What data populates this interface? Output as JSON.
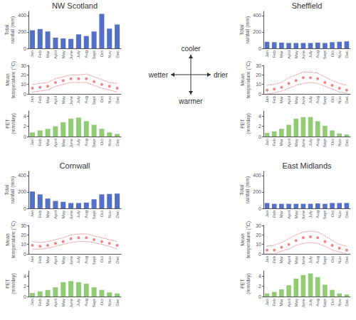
{
  "chart_data": [
    {
      "type": "bar",
      "title": "NW Scotland",
      "ylabel": "Total\nrainfall (mm)",
      "categories": [
        "Jan",
        "Feb",
        "Mar",
        "April",
        "May",
        "June",
        "July",
        "Aug",
        "Sept",
        "Oct",
        "Nov",
        "Dec"
      ],
      "values": [
        220,
        235,
        205,
        130,
        120,
        115,
        170,
        150,
        205,
        420,
        240,
        290
      ],
      "ylim": [
        0,
        450
      ],
      "yticks": [
        0,
        200,
        400
      ],
      "grid": false
    },
    {
      "type": "line",
      "ylabel": "Mean\ntemperature (°C)",
      "categories": [
        "Jan",
        "Feb",
        "Mar",
        "April",
        "May",
        "June",
        "July",
        "Aug",
        "Sept",
        "Oct",
        "Nov",
        "Dec"
      ],
      "values": [
        6,
        7,
        8,
        12,
        14,
        16,
        16,
        16,
        13,
        10,
        8,
        6
      ],
      "upper": [
        10,
        11,
        12,
        16,
        18,
        20,
        20,
        21,
        18,
        15,
        12,
        11
      ],
      "lower": [
        2,
        3,
        4,
        8,
        10,
        12,
        12,
        12,
        9,
        6,
        4,
        2
      ],
      "marker": "dot",
      "line_style": "dotted",
      "ylim": [
        0,
        30
      ],
      "yticks": [
        0,
        10,
        20,
        30
      ],
      "grid": false
    },
    {
      "type": "bar",
      "ylabel": "PET\n(mm/day)",
      "categories": [
        "Jan",
        "Feb",
        "Mar",
        "April",
        "May",
        "June",
        "July",
        "Aug",
        "Sept",
        "Oct",
        "Nov",
        "Dec"
      ],
      "values": [
        0.8,
        1.2,
        1.5,
        2.0,
        2.8,
        3.5,
        3.7,
        3.0,
        2.3,
        1.5,
        0.8,
        0.5
      ],
      "ylim": [
        0,
        5
      ],
      "yticks": [
        0,
        2,
        4
      ],
      "grid": false
    },
    {
      "type": "bar",
      "title": "Sheffield",
      "ylabel": "Total\nrainfall (mm)",
      "categories": [
        "Jan",
        "Feb",
        "Mar",
        "April",
        "May",
        "June",
        "July",
        "Aug",
        "Sept",
        "Oct",
        "Nov",
        "Dec"
      ],
      "values": [
        80,
        75,
        70,
        65,
        65,
        65,
        65,
        70,
        65,
        75,
        80,
        85
      ],
      "ylim": [
        0,
        450
      ],
      "yticks": [
        0,
        200,
        400
      ],
      "grid": false
    },
    {
      "type": "line",
      "ylabel": "Mean\ntemperature (°C)",
      "categories": [
        "Jan",
        "Feb",
        "Mar",
        "April",
        "May",
        "June",
        "July",
        "Aug",
        "Sept",
        "Oct",
        "Nov",
        "Dec"
      ],
      "values": [
        4,
        5,
        7,
        11,
        14,
        17,
        17,
        16,
        12,
        9,
        6,
        4
      ],
      "upper": [
        9,
        10,
        12,
        17,
        20,
        23,
        23,
        22,
        18,
        14,
        11,
        9
      ],
      "lower": [
        0,
        1,
        3,
        6,
        9,
        11,
        12,
        11,
        8,
        5,
        2,
        1
      ],
      "marker": "dot",
      "line_style": "dotted",
      "ylim": [
        0,
        30
      ],
      "yticks": [
        0,
        10,
        20,
        30
      ],
      "grid": false
    },
    {
      "type": "bar",
      "ylabel": "PET\n(mm/day)",
      "categories": [
        "Jan",
        "Feb",
        "Mar",
        "April",
        "May",
        "June",
        "July",
        "Aug",
        "Sept",
        "Oct",
        "Nov",
        "Dec"
      ],
      "values": [
        0.7,
        1.0,
        1.5,
        2.3,
        3.5,
        3.8,
        3.8,
        3.0,
        2.1,
        1.2,
        0.6,
        0.4
      ],
      "ylim": [
        0,
        5
      ],
      "yticks": [
        0,
        2,
        4
      ],
      "grid": false
    },
    {
      "type": "bar",
      "title": "Cornwall",
      "ylabel": "Total\nrainfall (mm)",
      "categories": [
        "Jan",
        "Feb",
        "Mar",
        "April",
        "May",
        "June",
        "July",
        "Aug",
        "Sept",
        "Oct",
        "Nov",
        "Dec"
      ],
      "values": [
        205,
        170,
        120,
        90,
        80,
        65,
        65,
        70,
        110,
        170,
        175,
        180
      ],
      "ylim": [
        0,
        450
      ],
      "yticks": [
        0,
        200,
        400
      ],
      "grid": false
    },
    {
      "type": "line",
      "ylabel": "Mean\ntemperature (°C)",
      "categories": [
        "Jan",
        "Feb",
        "Mar",
        "April",
        "May",
        "June",
        "July",
        "Aug",
        "Sept",
        "Oct",
        "Nov",
        "Dec"
      ],
      "values": [
        9,
        8,
        9,
        11,
        13,
        16,
        17,
        17,
        15,
        13,
        11,
        9
      ],
      "upper": [
        13,
        12,
        13,
        15,
        17,
        20,
        21,
        21,
        19,
        17,
        15,
        13
      ],
      "lower": [
        5,
        5,
        6,
        8,
        10,
        12,
        13,
        13,
        12,
        10,
        8,
        5
      ],
      "marker": "dot",
      "line_style": "dotted",
      "ylim": [
        0,
        30
      ],
      "yticks": [
        0,
        10,
        20,
        30
      ],
      "grid": false
    },
    {
      "type": "bar",
      "ylabel": "PET\n(mm/day)",
      "categories": [
        "Jan",
        "Feb",
        "Mar",
        "April",
        "May",
        "June",
        "July",
        "Aug",
        "Sept",
        "Oct",
        "Nov",
        "Dec"
      ],
      "values": [
        0.7,
        1.0,
        1.3,
        1.8,
        2.8,
        3.0,
        2.8,
        2.5,
        1.8,
        1.3,
        0.8,
        0.6
      ],
      "ylim": [
        0,
        5
      ],
      "yticks": [
        0,
        2,
        4
      ],
      "grid": false
    },
    {
      "type": "bar",
      "title": "East Midlands",
      "ylabel": "Total\nrainfall (mm)",
      "categories": [
        "Jan",
        "Feb",
        "Mar",
        "April",
        "May",
        "June",
        "July",
        "Aug",
        "Sept",
        "Oct",
        "Nov",
        "Dec"
      ],
      "values": [
        65,
        55,
        55,
        55,
        55,
        55,
        55,
        60,
        55,
        65,
        65,
        65
      ],
      "ylim": [
        0,
        450
      ],
      "yticks": [
        0,
        200,
        400
      ],
      "grid": false
    },
    {
      "type": "line",
      "ylabel": "Mean\ntemperature (°C)",
      "categories": [
        "Jan",
        "Feb",
        "Mar",
        "April",
        "May",
        "June",
        "July",
        "Aug",
        "Sept",
        "Oct",
        "Nov",
        "Dec"
      ],
      "values": [
        4,
        4,
        7,
        10,
        14,
        17,
        18,
        17,
        13,
        9,
        6,
        4
      ],
      "upper": [
        8,
        9,
        12,
        16,
        20,
        23,
        24,
        23,
        19,
        14,
        10,
        8
      ],
      "lower": [
        0,
        0,
        3,
        5,
        9,
        11,
        12,
        11,
        8,
        4,
        2,
        0
      ],
      "marker": "dot",
      "line_style": "dotted",
      "ylim": [
        0,
        30
      ],
      "yticks": [
        0,
        10,
        20,
        30
      ],
      "grid": false
    },
    {
      "type": "bar",
      "ylabel": "PET\n(mm/day)",
      "categories": [
        "Jan",
        "Feb",
        "Mar",
        "April",
        "May",
        "June",
        "July",
        "Aug",
        "Sept",
        "Oct",
        "Nov",
        "Dec"
      ],
      "values": [
        0.6,
        0.9,
        1.4,
        2.2,
        3.5,
        4.2,
        4.5,
        3.8,
        2.3,
        1.3,
        0.6,
        0.4
      ],
      "ylim": [
        0,
        5
      ],
      "yticks": [
        0,
        2,
        4
      ],
      "grid": false
    },
    {
      "type": "annotation",
      "annotations": [
        "cooler",
        "warmer",
        "wetter",
        "drier"
      ]
    }
  ]
}
